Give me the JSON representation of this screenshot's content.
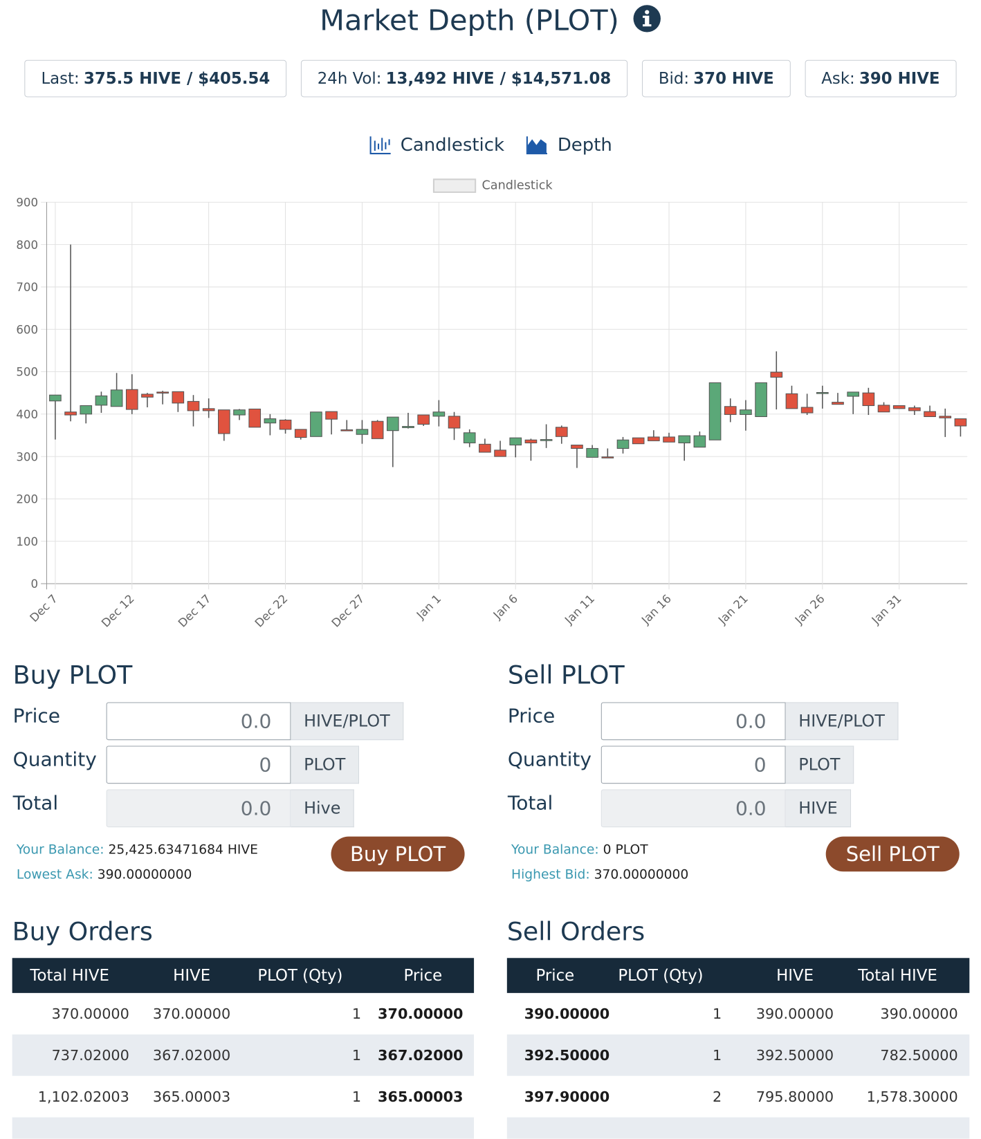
{
  "header": {
    "title": "Market Depth (PLOT)"
  },
  "stats": [
    {
      "label": "Last:",
      "value": "375.5 HIVE / $405.54"
    },
    {
      "label": "24h Vol:",
      "value": "13,492 HIVE / $14,571.08"
    },
    {
      "label": "Bid:",
      "value": "370 HIVE"
    },
    {
      "label": "Ask:",
      "value": "390 HIVE"
    }
  ],
  "tabs": [
    "Candlestick",
    "Depth"
  ],
  "chart_data": {
    "type": "candlestick",
    "legend": "Candlestick",
    "categories": [
      "Dec 7",
      null,
      null,
      null,
      null,
      "Dec 12",
      null,
      null,
      null,
      null,
      "Dec 17",
      null,
      null,
      null,
      null,
      "Dec 22",
      null,
      null,
      null,
      null,
      "Dec 27",
      null,
      null,
      null,
      null,
      "Jan 1",
      null,
      null,
      null,
      null,
      "Jan 6",
      null,
      null,
      null,
      null,
      "Jan 11",
      null,
      null,
      null,
      null,
      "Jan 16",
      null,
      null,
      null,
      null,
      "Jan 21",
      null,
      null,
      null,
      null,
      "Jan 26",
      null,
      null,
      null,
      null,
      "Jan 31",
      null,
      null,
      null,
      null
    ],
    "open": [
      431,
      405,
      400,
      421,
      418,
      458,
      447,
      452,
      453,
      430,
      413,
      410,
      398,
      412,
      379,
      386,
      364,
      347,
      406,
      363,
      352,
      383,
      361,
      368,
      398,
      395,
      395,
      332,
      329,
      315,
      327,
      339,
      339,
      369,
      327,
      298,
      299,
      319,
      344,
      346,
      346,
      332,
      322,
      339,
      418,
      399,
      394,
      499,
      448,
      416,
      450,
      428,
      442,
      450,
      421,
      420,
      415,
      406,
      395,
      389
    ],
    "high": [
      445,
      800,
      420,
      453,
      497,
      494,
      450,
      455,
      453,
      445,
      437,
      410,
      412,
      412,
      400,
      388,
      364,
      405,
      406,
      386,
      386,
      386,
      393,
      403,
      398,
      433,
      405,
      364,
      342,
      337,
      344,
      342,
      376,
      373,
      327,
      327,
      319,
      346,
      344,
      362,
      356,
      349,
      359,
      474,
      437,
      433,
      474,
      548,
      467,
      448,
      467,
      450,
      452,
      462,
      428,
      420,
      420,
      420,
      413,
      389
    ],
    "low": [
      340,
      383,
      378,
      403,
      418,
      400,
      416,
      423,
      405,
      371,
      391,
      337,
      386,
      369,
      350,
      354,
      340,
      347,
      352,
      362,
      330,
      342,
      275,
      366,
      372,
      371,
      339,
      322,
      310,
      300,
      298,
      290,
      320,
      330,
      273,
      298,
      298,
      307,
      330,
      337,
      334,
      290,
      322,
      339,
      381,
      361,
      394,
      411,
      413,
      398,
      413,
      423,
      400,
      398,
      405,
      413,
      398,
      394,
      346,
      347
    ],
    "close": [
      445,
      398,
      420,
      443,
      457,
      411,
      440,
      451,
      426,
      408,
      408,
      354,
      410,
      369,
      389,
      364,
      345,
      405,
      388,
      362,
      364,
      342,
      393,
      371,
      376,
      405,
      367,
      356,
      310,
      300,
      344,
      332,
      340,
      347,
      319,
      319,
      298,
      339,
      330,
      337,
      334,
      349,
      349,
      474,
      399,
      410,
      474,
      487,
      413,
      403,
      451,
      423,
      452,
      420,
      405,
      413,
      408,
      394,
      391,
      372
    ],
    "up_color": "#5ba878",
    "down_color": "#e0533f",
    "ylim": [
      0,
      900
    ],
    "yticks": [
      0,
      100,
      200,
      300,
      400,
      500,
      600,
      700,
      800,
      900
    ],
    "grid": true
  },
  "buy_form": {
    "title": "Buy PLOT",
    "fields": [
      {
        "label": "Price",
        "placeholder": "0.0",
        "unit": "HIVE/PLOT"
      },
      {
        "label": "Quantity",
        "placeholder": "0",
        "unit": "PLOT"
      },
      {
        "label": "Total",
        "placeholder": "0.0",
        "unit": "Hive"
      }
    ],
    "balance_label": "Your Balance:",
    "balance": "25,425.63471684 HIVE",
    "best_label": "Lowest Ask:",
    "best": "390.00000000",
    "button": "Buy PLOT"
  },
  "sell_form": {
    "title": "Sell PLOT",
    "fields": [
      {
        "label": "Price",
        "placeholder": "0.0",
        "unit": "HIVE/PLOT"
      },
      {
        "label": "Quantity",
        "placeholder": "0",
        "unit": "PLOT"
      },
      {
        "label": "Total",
        "placeholder": "0.0",
        "unit": "HIVE"
      }
    ],
    "balance_label": "Your Balance:",
    "balance": "0 PLOT",
    "best_label": "Highest Bid:",
    "best": "370.00000000",
    "button": "Sell PLOT"
  },
  "buy_orders": {
    "title": "Buy Orders",
    "columns": [
      "Total HIVE",
      "HIVE",
      "PLOT (Qty)",
      "Price"
    ],
    "rows": [
      [
        "370.00000",
        "370.00000",
        "1",
        "370.00000"
      ],
      [
        "737.02000",
        "367.02000",
        "1",
        "367.02000"
      ],
      [
        "1,102.02003",
        "365.00003",
        "1",
        "365.00003"
      ]
    ]
  },
  "sell_orders": {
    "title": "Sell Orders",
    "columns": [
      "Price",
      "PLOT (Qty)",
      "HIVE",
      "Total HIVE"
    ],
    "rows": [
      [
        "390.00000",
        "1",
        "390.00000",
        "390.00000"
      ],
      [
        "392.50000",
        "1",
        "392.50000",
        "782.50000"
      ],
      [
        "397.90000",
        "2",
        "795.80000",
        "1,578.30000"
      ]
    ]
  }
}
